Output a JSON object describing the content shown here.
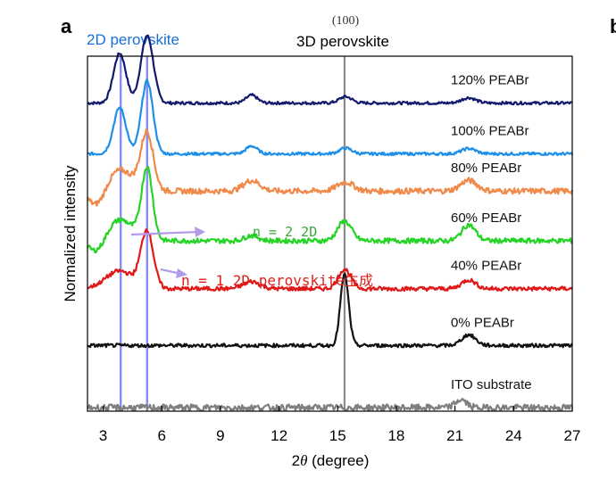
{
  "panel_label": "a",
  "next_panel_label": "b",
  "top_labels": {
    "twod": "2D perovskite",
    "threed": "3D perovskite",
    "threed_index": "(100)"
  },
  "annotations": {
    "n2": "n = 2 2D",
    "n1": "n = 1 2D perovskite生成"
  },
  "colors": {
    "axis": "#000000",
    "guide_2d": "#7b7ff0",
    "guide_3d": "#7f7f7f",
    "twod_label": "#1a6fd6",
    "n2_text": "#3aa63a",
    "n1_text": "#e0201a",
    "arrow": "#b49be8"
  },
  "chart_data": {
    "type": "line",
    "xlabel": "2θ (degree)",
    "ylabel": "Normalized intensity",
    "xlim": [
      2.2,
      27
    ],
    "xticks": [
      3,
      6,
      9,
      12,
      15,
      18,
      21,
      24,
      27
    ],
    "grid": false,
    "guide_lines_x": [
      {
        "x": 3.9,
        "label": "2D perovskite"
      },
      {
        "x": 5.25,
        "label": "2D perovskite"
      },
      {
        "x": 15.35,
        "label": "3D perovskite (100)"
      }
    ],
    "series": [
      {
        "name": "120% PEABr",
        "color": "#141a6e",
        "baseline_frac": 0.868,
        "peaks": [
          [
            3.85,
            0.14,
            0.45
          ],
          [
            5.25,
            0.19,
            0.45
          ],
          [
            10.6,
            0.022,
            0.4
          ],
          [
            15.4,
            0.018,
            0.45
          ],
          [
            21.7,
            0.015,
            0.5
          ]
        ],
        "noise": 0.004
      },
      {
        "name": "100% PEABr",
        "color": "#1e8fe8",
        "baseline_frac": 0.725,
        "peaks": [
          [
            3.85,
            0.13,
            0.45
          ],
          [
            5.25,
            0.205,
            0.42
          ],
          [
            10.6,
            0.022,
            0.4
          ],
          [
            15.4,
            0.016,
            0.45
          ],
          [
            21.7,
            0.015,
            0.5
          ]
        ],
        "noise": 0.004
      },
      {
        "name": "80% PEABr",
        "color": "#f08a4b",
        "baseline_frac": 0.62,
        "peaks": [
          [
            3.85,
            0.06,
            1.0
          ],
          [
            5.25,
            0.16,
            0.45
          ],
          [
            10.6,
            0.03,
            0.6
          ],
          [
            15.4,
            0.025,
            0.6
          ],
          [
            21.7,
            0.03,
            0.6
          ]
        ],
        "dip": [
          2.7,
          -0.05,
          0.6
        ],
        "noise": 0.008
      },
      {
        "name": "60% PEABr",
        "color": "#26d426",
        "baseline_frac": 0.48,
        "peaks": [
          [
            3.85,
            0.06,
            1.0
          ],
          [
            5.25,
            0.2,
            0.4
          ],
          [
            10.6,
            0.015,
            0.5
          ],
          [
            15.35,
            0.055,
            0.5
          ],
          [
            21.7,
            0.045,
            0.5
          ]
        ],
        "dip": [
          2.7,
          -0.04,
          0.6
        ],
        "noise": 0.007
      },
      {
        "name": "40% PEABr",
        "color": "#e01818",
        "baseline_frac": 0.345,
        "peaks": [
          [
            3.85,
            0.05,
            1.0
          ],
          [
            5.25,
            0.16,
            0.45
          ],
          [
            10.6,
            0.02,
            0.6
          ],
          [
            15.35,
            0.055,
            0.45
          ],
          [
            21.7,
            0.025,
            0.5
          ]
        ],
        "noise": 0.006
      },
      {
        "name": "0% PEABr",
        "color": "#111111",
        "baseline_frac": 0.185,
        "peaks": [
          [
            15.35,
            0.2,
            0.3
          ],
          [
            21.7,
            0.03,
            0.5
          ]
        ],
        "noise": 0.005
      },
      {
        "name": "ITO substrate",
        "color": "#7f7f7f",
        "baseline_frac": 0.01,
        "peaks": [
          [
            21.3,
            0.022,
            0.4
          ]
        ],
        "noise": 0.009
      }
    ]
  }
}
